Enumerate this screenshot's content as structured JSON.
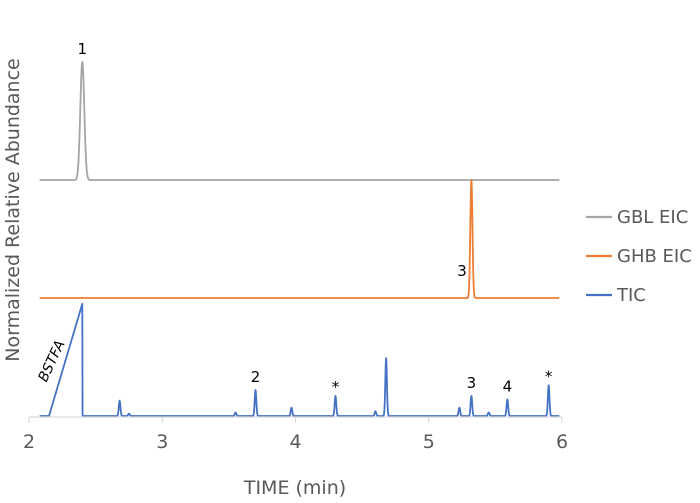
{
  "chart_data": {
    "type": "line",
    "title": "",
    "xlabel": "TIME (min)",
    "ylabel": "Normalized Relative Abundance",
    "xlim": [
      2,
      6
    ],
    "x_ticks": [
      "2",
      "3",
      "4",
      "5",
      "6"
    ],
    "y_ticks_visible": false,
    "grid": false,
    "legend_position": "right",
    "series": [
      {
        "name": "GBL EIC",
        "color": "#a5a5a5",
        "baseline_offset": 2.0,
        "peaks": [
          {
            "x": 2.4,
            "height": 1.0,
            "width": 0.015
          }
        ]
      },
      {
        "name": "GHB EIC",
        "color": "#ed7d31",
        "baseline_offset": 1.0,
        "peaks": [
          {
            "x": 5.32,
            "height": 1.0,
            "width": 0.008
          }
        ]
      },
      {
        "name": "TIC",
        "color": "#4472c4",
        "baseline_offset": 0.0,
        "ramp": {
          "x_start": 2.15,
          "x_end": 2.4,
          "height": 0.95
        },
        "peaks": [
          {
            "x": 2.68,
            "height": 0.13,
            "width": 0.006
          },
          {
            "x": 2.75,
            "height": 0.02,
            "width": 0.006
          },
          {
            "x": 3.55,
            "height": 0.03,
            "width": 0.006
          },
          {
            "x": 3.7,
            "height": 0.22,
            "width": 0.006
          },
          {
            "x": 3.97,
            "height": 0.07,
            "width": 0.006
          },
          {
            "x": 4.3,
            "height": 0.17,
            "width": 0.006
          },
          {
            "x": 4.6,
            "height": 0.04,
            "width": 0.006
          },
          {
            "x": 4.68,
            "height": 0.49,
            "width": 0.006
          },
          {
            "x": 5.23,
            "height": 0.07,
            "width": 0.006
          },
          {
            "x": 5.32,
            "height": 0.17,
            "width": 0.006
          },
          {
            "x": 5.45,
            "height": 0.03,
            "width": 0.006
          },
          {
            "x": 5.59,
            "height": 0.14,
            "width": 0.006
          },
          {
            "x": 5.9,
            "height": 0.26,
            "width": 0.006
          }
        ]
      }
    ],
    "annotations": [
      {
        "text": "1",
        "x": 2.4,
        "series": "GBL EIC"
      },
      {
        "text": "3",
        "x": 5.25,
        "series": "GHB EIC"
      },
      {
        "text": "2",
        "x": 3.7,
        "series": "TIC"
      },
      {
        "text": "*",
        "x": 4.3,
        "series": "TIC"
      },
      {
        "text": "3",
        "x": 5.32,
        "series": "TIC"
      },
      {
        "text": "4",
        "x": 5.59,
        "series": "TIC"
      },
      {
        "text": "*",
        "x": 5.9,
        "series": "TIC"
      },
      {
        "text": "BSTFA",
        "x": 2.23,
        "series": "TIC"
      }
    ]
  }
}
